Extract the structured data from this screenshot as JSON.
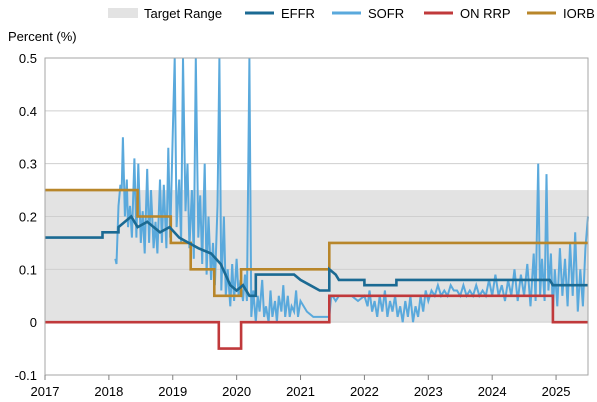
{
  "chart_data": {
    "type": "line",
    "ylabel": "Percent (%)",
    "xlim": [
      2017,
      2025.5
    ],
    "ylim": [
      -0.1,
      0.5
    ],
    "x_ticks": [
      "2017",
      "2018",
      "2019",
      "2020",
      "2021",
      "2022",
      "2023",
      "2024",
      "2025"
    ],
    "y_ticks": [
      "-0.1",
      "0",
      "0.1",
      "0.2",
      "0.3",
      "0.4",
      "0.5"
    ],
    "grid": true,
    "legend_position": "top",
    "target_range": {
      "name": "Target Range",
      "color": "#e3e3e3",
      "lower": 0,
      "upper": 0.25
    },
    "series": [
      {
        "name": "EFFR",
        "color": "#1b6a93",
        "points": [
          [
            2017.0,
            0.16
          ],
          [
            2017.9,
            0.16
          ],
          [
            2017.9,
            0.17
          ],
          [
            2018.15,
            0.17
          ],
          [
            2018.15,
            0.18
          ],
          [
            2018.25,
            0.19
          ],
          [
            2018.35,
            0.2
          ],
          [
            2018.45,
            0.18
          ],
          [
            2018.6,
            0.19
          ],
          [
            2018.8,
            0.17
          ],
          [
            2018.95,
            0.18
          ],
          [
            2019.1,
            0.16
          ],
          [
            2019.25,
            0.15
          ],
          [
            2019.4,
            0.14
          ],
          [
            2019.6,
            0.13
          ],
          [
            2019.75,
            0.11
          ],
          [
            2019.9,
            0.07
          ],
          [
            2020.0,
            0.06
          ],
          [
            2020.1,
            0.07
          ],
          [
            2020.2,
            0.05
          ],
          [
            2020.3,
            0.05
          ],
          [
            2020.3,
            0.09
          ],
          [
            2020.6,
            0.09
          ],
          [
            2020.9,
            0.09
          ],
          [
            2021.0,
            0.08
          ],
          [
            2021.15,
            0.07
          ],
          [
            2021.3,
            0.06
          ],
          [
            2021.45,
            0.06
          ],
          [
            2021.45,
            0.1
          ],
          [
            2021.55,
            0.09
          ],
          [
            2021.6,
            0.08
          ],
          [
            2021.65,
            0.08
          ],
          [
            2022.0,
            0.08
          ],
          [
            2022.0,
            0.07
          ],
          [
            2022.5,
            0.07
          ],
          [
            2022.5,
            0.08
          ],
          [
            2023.0,
            0.08
          ],
          [
            2023.5,
            0.08
          ],
          [
            2024.0,
            0.08
          ],
          [
            2024.5,
            0.08
          ],
          [
            2024.9,
            0.08
          ],
          [
            2024.95,
            0.07
          ],
          [
            2025.5,
            0.07
          ]
        ]
      },
      {
        "name": "SOFR",
        "color": "#5aa9dc",
        "points": [
          [
            2018.1,
            0.12
          ],
          [
            2018.12,
            0.11
          ],
          [
            2018.15,
            0.22
          ],
          [
            2018.18,
            0.26
          ],
          [
            2018.2,
            0.25
          ],
          [
            2018.22,
            0.35
          ],
          [
            2018.25,
            0.2
          ],
          [
            2018.28,
            0.27
          ],
          [
            2018.3,
            0.18
          ],
          [
            2018.33,
            0.22
          ],
          [
            2018.36,
            0.16
          ],
          [
            2018.4,
            0.31
          ],
          [
            2018.43,
            0.16
          ],
          [
            2018.46,
            0.3
          ],
          [
            2018.5,
            0.15
          ],
          [
            2018.53,
            0.21
          ],
          [
            2018.56,
            0.13
          ],
          [
            2018.6,
            0.29
          ],
          [
            2018.63,
            0.15
          ],
          [
            2018.66,
            0.25
          ],
          [
            2018.7,
            0.14
          ],
          [
            2018.73,
            0.19
          ],
          [
            2018.76,
            0.13
          ],
          [
            2018.8,
            0.27
          ],
          [
            2018.83,
            0.15
          ],
          [
            2018.86,
            0.26
          ],
          [
            2018.9,
            0.14
          ],
          [
            2018.93,
            0.33
          ],
          [
            2018.96,
            0.16
          ],
          [
            2019.0,
            0.36
          ],
          [
            2019.03,
            0.5
          ],
          [
            2019.06,
            0.18
          ],
          [
            2019.1,
            0.27
          ],
          [
            2019.13,
            0.15
          ],
          [
            2019.16,
            0.5
          ],
          [
            2019.2,
            0.21
          ],
          [
            2019.23,
            0.3
          ],
          [
            2019.26,
            0.14
          ],
          [
            2019.3,
            0.25
          ],
          [
            2019.33,
            0.12
          ],
          [
            2019.36,
            0.5
          ],
          [
            2019.4,
            0.16
          ],
          [
            2019.43,
            0.24
          ],
          [
            2019.46,
            0.11
          ],
          [
            2019.5,
            0.3
          ],
          [
            2019.53,
            0.09
          ],
          [
            2019.56,
            0.2
          ],
          [
            2019.6,
            0.08
          ],
          [
            2019.63,
            0.15
          ],
          [
            2019.66,
            0.07
          ],
          [
            2019.7,
            0.22
          ],
          [
            2019.73,
            0.5
          ],
          [
            2019.76,
            0.06
          ],
          [
            2019.8,
            0.2
          ],
          [
            2019.83,
            0.05
          ],
          [
            2019.86,
            0.1
          ],
          [
            2019.9,
            0.03
          ],
          [
            2019.93,
            0.11
          ],
          [
            2019.96,
            0.04
          ],
          [
            2020.0,
            0.12
          ],
          [
            2020.03,
            0.05
          ],
          [
            2020.06,
            0.08
          ],
          [
            2020.1,
            0.04
          ],
          [
            2020.13,
            0.09
          ],
          [
            2020.16,
            0.04
          ],
          [
            2020.2,
            0.5
          ],
          [
            2020.23,
            0.01
          ],
          [
            2020.26,
            0.06
          ],
          [
            2020.3,
            0.0
          ],
          [
            2020.33,
            0.05
          ],
          [
            2020.36,
            0.02
          ],
          [
            2020.4,
            0.08
          ],
          [
            2020.43,
            0.01
          ],
          [
            2020.46,
            0.03
          ],
          [
            2020.5,
            0.0
          ],
          [
            2020.53,
            0.06
          ],
          [
            2020.56,
            0.01
          ],
          [
            2020.6,
            0.04
          ],
          [
            2020.63,
            0.0
          ],
          [
            2020.66,
            0.05
          ],
          [
            2020.7,
            0.02
          ],
          [
            2020.73,
            0.07
          ],
          [
            2020.76,
            0.01
          ],
          [
            2020.8,
            0.05
          ],
          [
            2020.83,
            0.01
          ],
          [
            2020.86,
            0.03
          ],
          [
            2020.9,
            0.02
          ],
          [
            2020.93,
            0.06
          ],
          [
            2020.96,
            0.01
          ],
          [
            2021.0,
            0.04
          ],
          [
            2021.1,
            0.02
          ],
          [
            2021.2,
            0.01
          ],
          [
            2021.3,
            0.01
          ],
          [
            2021.45,
            0.01
          ],
          [
            2021.48,
            0.05
          ],
          [
            2021.5,
            0.05
          ],
          [
            2021.55,
            0.04
          ],
          [
            2021.6,
            0.05
          ],
          [
            2021.7,
            0.05
          ],
          [
            2021.8,
            0.05
          ],
          [
            2021.9,
            0.04
          ],
          [
            2022.0,
            0.05
          ],
          [
            2022.05,
            0.03
          ],
          [
            2022.08,
            0.06
          ],
          [
            2022.12,
            0.02
          ],
          [
            2022.16,
            0.04
          ],
          [
            2022.2,
            0.01
          ],
          [
            2022.24,
            0.05
          ],
          [
            2022.28,
            0.02
          ],
          [
            2022.32,
            0.06
          ],
          [
            2022.36,
            0.01
          ],
          [
            2022.4,
            0.04
          ],
          [
            2022.44,
            0.02
          ],
          [
            2022.48,
            0.05
          ],
          [
            2022.52,
            0.01
          ],
          [
            2022.56,
            0.03
          ],
          [
            2022.6,
            0.0
          ],
          [
            2022.64,
            0.04
          ],
          [
            2022.68,
            0.01
          ],
          [
            2022.72,
            0.05
          ],
          [
            2022.76,
            0.0
          ],
          [
            2022.8,
            0.03
          ],
          [
            2022.84,
            0.01
          ],
          [
            2022.88,
            0.05
          ],
          [
            2022.92,
            0.02
          ],
          [
            2022.96,
            0.06
          ],
          [
            2023.0,
            0.04
          ],
          [
            2023.05,
            0.06
          ],
          [
            2023.1,
            0.05
          ],
          [
            2023.15,
            0.07
          ],
          [
            2023.2,
            0.05
          ],
          [
            2023.25,
            0.06
          ],
          [
            2023.3,
            0.05
          ],
          [
            2023.35,
            0.07
          ],
          [
            2023.4,
            0.06
          ],
          [
            2023.45,
            0.06
          ],
          [
            2023.5,
            0.05
          ],
          [
            2023.55,
            0.07
          ],
          [
            2023.6,
            0.05
          ],
          [
            2023.65,
            0.06
          ],
          [
            2023.7,
            0.05
          ],
          [
            2023.75,
            0.07
          ],
          [
            2023.8,
            0.05
          ],
          [
            2023.85,
            0.06
          ],
          [
            2023.9,
            0.05
          ],
          [
            2023.95,
            0.08
          ],
          [
            2024.0,
            0.05
          ],
          [
            2024.05,
            0.09
          ],
          [
            2024.1,
            0.05
          ],
          [
            2024.15,
            0.07
          ],
          [
            2024.2,
            0.04
          ],
          [
            2024.25,
            0.08
          ],
          [
            2024.3,
            0.05
          ],
          [
            2024.35,
            0.1
          ],
          [
            2024.4,
            0.04
          ],
          [
            2024.45,
            0.09
          ],
          [
            2024.5,
            0.05
          ],
          [
            2024.55,
            0.11
          ],
          [
            2024.6,
            0.03
          ],
          [
            2024.65,
            0.13
          ],
          [
            2024.68,
            0.04
          ],
          [
            2024.72,
            0.3
          ],
          [
            2024.75,
            0.05
          ],
          [
            2024.78,
            0.12
          ],
          [
            2024.82,
            0.04
          ],
          [
            2024.85,
            0.28
          ],
          [
            2024.88,
            0.06
          ],
          [
            2024.92,
            0.13
          ],
          [
            2024.95,
            0.02
          ],
          [
            2024.98,
            0.1
          ],
          [
            2025.02,
            0.03
          ],
          [
            2025.06,
            0.14
          ],
          [
            2025.1,
            0.05
          ],
          [
            2025.14,
            0.12
          ],
          [
            2025.18,
            0.03
          ],
          [
            2025.22,
            0.15
          ],
          [
            2025.26,
            0.05
          ],
          [
            2025.3,
            0.17
          ],
          [
            2025.34,
            0.02
          ],
          [
            2025.38,
            0.1
          ],
          [
            2025.42,
            0.03
          ],
          [
            2025.46,
            0.14
          ],
          [
            2025.5,
            0.2
          ]
        ]
      },
      {
        "name": "ON RRP",
        "color": "#c0393b",
        "points": [
          [
            2017.0,
            0.0
          ],
          [
            2019.72,
            0.0
          ],
          [
            2019.72,
            -0.05
          ],
          [
            2020.07,
            -0.05
          ],
          [
            2020.07,
            0.0
          ],
          [
            2021.45,
            0.0
          ],
          [
            2021.45,
            0.05
          ],
          [
            2024.95,
            0.05
          ],
          [
            2024.95,
            0.0
          ],
          [
            2025.5,
            0.0
          ]
        ]
      },
      {
        "name": "IORB",
        "color": "#b8862a",
        "points": [
          [
            2017.0,
            0.25
          ],
          [
            2018.45,
            0.25
          ],
          [
            2018.45,
            0.2
          ],
          [
            2018.97,
            0.2
          ],
          [
            2018.97,
            0.15
          ],
          [
            2019.28,
            0.15
          ],
          [
            2019.28,
            0.1
          ],
          [
            2019.65,
            0.1
          ],
          [
            2019.65,
            0.05
          ],
          [
            2020.07,
            0.05
          ],
          [
            2020.07,
            0.1
          ],
          [
            2021.45,
            0.1
          ],
          [
            2021.45,
            0.15
          ],
          [
            2025.5,
            0.15
          ]
        ]
      }
    ]
  }
}
